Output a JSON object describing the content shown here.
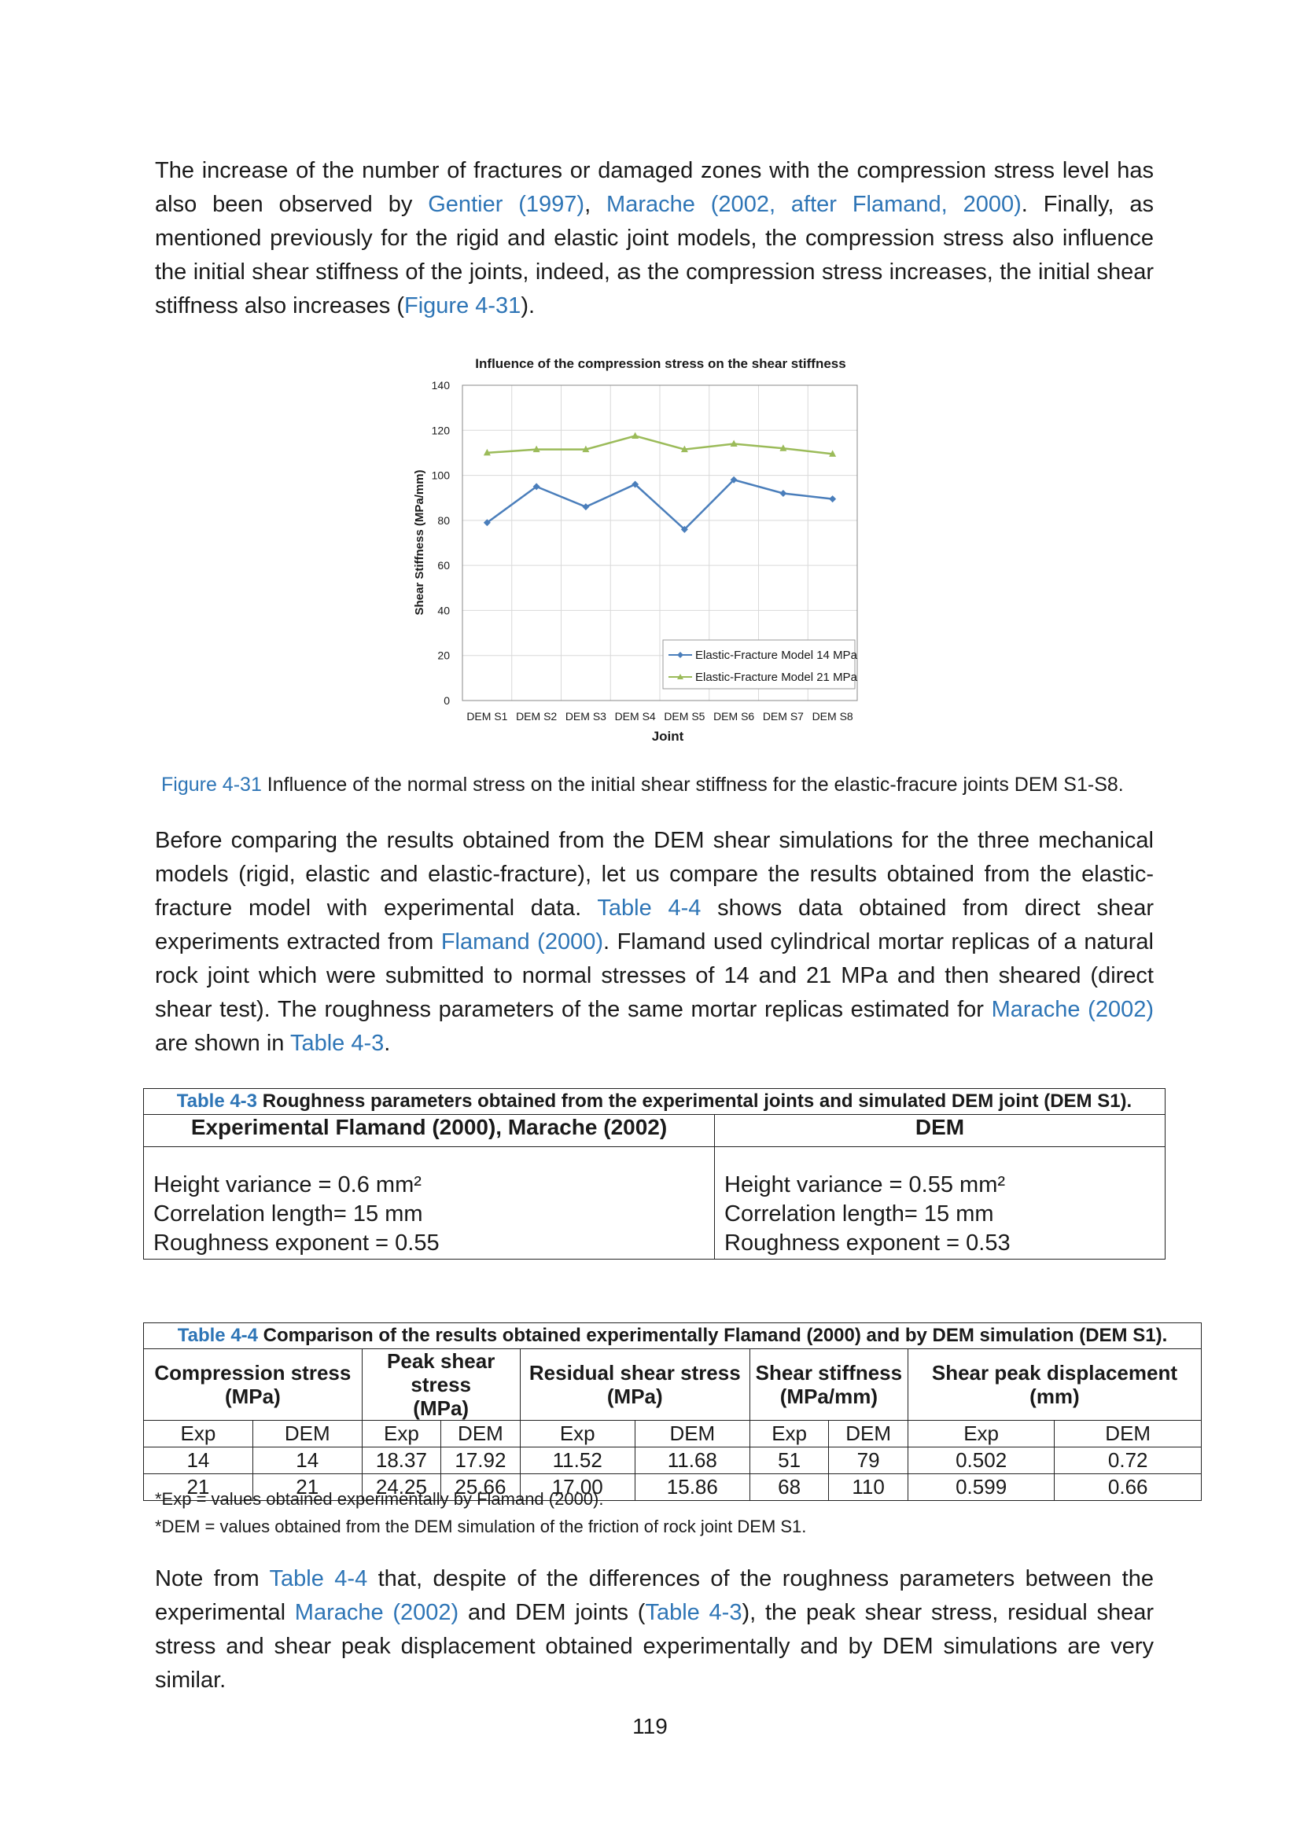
{
  "para1": {
    "t1": "The increase of the number of fractures or damaged zones with the compression stress level has also been observed by ",
    "ref1": "Gentier (1997)",
    "t2": ", ",
    "ref2": "Marache (2002, after Flamand, 2000)",
    "t3": ". Finally, as mentioned previously for the rigid and elastic joint models, the compression stress also influence the initial shear stiffness of the joints, indeed, as the compression stress increases, the initial shear stiffness also increases (",
    "ref3": "Figure 4-31",
    "t4": ")."
  },
  "chart_data": {
    "type": "line",
    "title": "Influence of the compression stress on the shear stiffness",
    "xlabel": "Joint",
    "ylabel": "Shear Stiffness (MPa/mm)",
    "categories": [
      "DEM S1",
      "DEM S2",
      "DEM S3",
      "DEM S4",
      "DEM S5",
      "DEM S6",
      "DEM S7",
      "DEM S8"
    ],
    "ylim": [
      0,
      140
    ],
    "yticks": [
      0,
      20,
      40,
      60,
      80,
      100,
      120,
      140
    ],
    "grid": true,
    "legend_position": "bottom-right",
    "series": [
      {
        "name": "Elastic-Fracture Model 14 MPa",
        "color": "#4a7ebb",
        "marker": "diamond",
        "values": [
          79,
          95,
          86,
          96,
          76,
          98,
          92,
          89.5
        ]
      },
      {
        "name": "Elastic-Fracture Model 21 MPa",
        "color": "#9bbb59",
        "marker": "triangle",
        "values": [
          110,
          111.5,
          111.5,
          117.5,
          111.5,
          114,
          112,
          109.5
        ]
      }
    ]
  },
  "figure_caption": {
    "label": "Figure 4-31",
    "text": " Influence of the normal stress on the initial shear stiffness for the elastic-fracure joints DEM S1-S8."
  },
  "para2": {
    "t1": "Before comparing the results obtained from the DEM shear simulations for the three mechanical models (rigid, elastic and elastic-fracture), let us compare the results obtained from the elastic-fracture model with experimental data. ",
    "ref1": "Table 4-4",
    "t2": " shows data obtained from direct shear experiments extracted from ",
    "ref2": "Flamand (2000)",
    "t3": ". Flamand used cylindrical mortar replicas of a natural rock joint which were submitted to normal stresses of 14 and 21 MPa and then sheared (direct shear test). The roughness parameters of the same mortar replicas estimated for ",
    "ref3": "Marache (2002)",
    "t4": " are shown in ",
    "ref4": "Table 4-3",
    "t5": "."
  },
  "table43": {
    "caption_label": "Table 4-3",
    "caption_text": " Roughness parameters obtained from the experimental joints and simulated DEM joint (DEM S1).",
    "col_exp_header": "Experimental Flamand (2000), Marache (2002)",
    "col_dem_header": "DEM",
    "exp_lines": [
      "Height variance = 0.6 mm²",
      "Correlation length= 15 mm",
      "Roughness exponent = 0.55"
    ],
    "dem_lines": [
      "Height variance = 0.55 mm²",
      "Correlation length= 15 mm",
      "Roughness exponent = 0.53"
    ]
  },
  "table44": {
    "caption_label": "Table 4-4",
    "caption_text": " Comparison of the results obtained experimentally Flamand (2000) and by DEM simulation (DEM S1).",
    "groups": [
      {
        "line1": "Compression stress",
        "line2": "(MPa)"
      },
      {
        "line1": "Peak shear stress",
        "line2": "(MPa)"
      },
      {
        "line1": "Residual shear stress",
        "line2": "(MPa)"
      },
      {
        "line1": "Shear stiffness",
        "line2": "(MPa/mm)"
      },
      {
        "line1": "Shear peak displacement",
        "line2": "(mm)"
      }
    ],
    "sub_exp": "Exp",
    "sub_dem": "DEM",
    "rows": [
      [
        "14",
        "14",
        "18.37",
        "17.92",
        "11.52",
        "11.68",
        "51",
        "79",
        "0.502",
        "0.72"
      ],
      [
        "21",
        "21",
        "24.25",
        "25.66",
        "17.00",
        "15.86",
        "68",
        "110",
        "0.599",
        "0.66"
      ]
    ]
  },
  "notes": [
    "*Exp = values obtained experimentally by Flamand (2000).",
    "*DEM = values obtained from the DEM simulation of the friction of rock joint DEM S1."
  ],
  "para3": {
    "t1": "Note from ",
    "ref1": "Table 4-4",
    "t2": " that, despite of the differences of the roughness parameters between the experimental ",
    "ref2": "Marache (2002)",
    "t3": " and DEM joints (",
    "ref3": "Table 4-3",
    "t4": "), the peak shear stress, residual shear stress and shear peak displacement obtained experimentally and by DEM simulations are very similar."
  },
  "page_number": "119"
}
